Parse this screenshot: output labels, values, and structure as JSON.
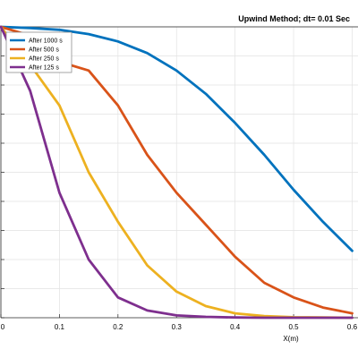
{
  "chart_data": {
    "type": "line",
    "title": "Upwind Method; dt= 0.01 Sec",
    "xlabel": "X(m)",
    "ylabel": "",
    "xlim": [
      0,
      0.61
    ],
    "ylim": [
      0,
      1
    ],
    "grid": true,
    "legend_position": "top-left",
    "x_ticks": [
      0,
      0.1,
      0.2,
      0.3,
      0.4,
      0.5,
      0.6
    ],
    "x_tick_labels": [
      "0",
      "0.1",
      "0.2",
      "0.3",
      "0.4",
      "0.5",
      "0.6"
    ],
    "y_ticks": [
      0,
      0.1,
      0.2,
      0.3,
      0.4,
      0.5,
      0.6,
      0.7,
      0.8,
      0.9,
      1.0
    ],
    "x": [
      0,
      0.05,
      0.1,
      0.15,
      0.2,
      0.25,
      0.3,
      0.35,
      0.4,
      0.45,
      0.5,
      0.55,
      0.6
    ],
    "series": [
      {
        "name": "After 1000 s",
        "color": "#0072BD",
        "values": [
          1.0,
          0.996,
          0.99,
          0.975,
          0.95,
          0.91,
          0.85,
          0.77,
          0.67,
          0.56,
          0.44,
          0.33,
          0.23
        ]
      },
      {
        "name": "After 500 s",
        "color": "#D95319",
        "values": [
          1.0,
          0.97,
          0.88,
          0.85,
          0.73,
          0.56,
          0.43,
          0.32,
          0.21,
          0.12,
          0.07,
          0.035,
          0.015
        ]
      },
      {
        "name": "After 250 s",
        "color": "#EDB120",
        "values": [
          1.0,
          0.87,
          0.73,
          0.5,
          0.33,
          0.18,
          0.09,
          0.04,
          0.015,
          0.006,
          0.002,
          0.001,
          0.0
        ]
      },
      {
        "name": "After 125 s",
        "color": "#7E2F8E",
        "values": [
          1.0,
          0.78,
          0.43,
          0.2,
          0.07,
          0.025,
          0.008,
          0.003,
          0.001,
          0.0,
          0.0,
          0.0,
          0.0
        ]
      }
    ]
  }
}
